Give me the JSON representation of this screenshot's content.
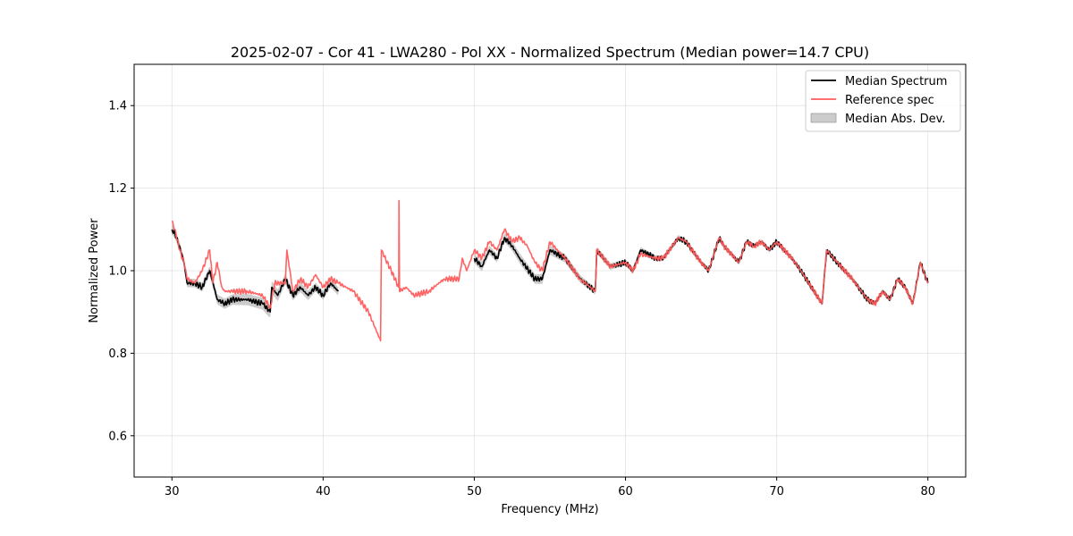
{
  "chart_data": {
    "type": "line",
    "title": "2025-02-07 - Cor 41 - LWA280 - Pol XX - Normalized Spectrum (Median power=14.7 CPU)",
    "xlabel": "Frequency (MHz)",
    "ylabel": "Normalized Power",
    "xlim": [
      27.5,
      82.5
    ],
    "ylim": [
      0.5,
      1.5
    ],
    "xticks": [
      30,
      40,
      50,
      60,
      70,
      80
    ],
    "yticks": [
      0.6,
      0.8,
      1.0,
      1.2,
      1.4
    ],
    "xtick_labels": [
      "30",
      "40",
      "50",
      "60",
      "70",
      "80"
    ],
    "ytick_labels": [
      "0.6",
      "0.8",
      "1.0",
      "1.2",
      "1.4"
    ],
    "grid": true,
    "legend_position": "top-right",
    "legend": [
      "Median Spectrum",
      "Reference spec",
      "Median Abs. Dev."
    ],
    "colors": {
      "median": "#000000",
      "reference": "#ff5c5c",
      "mad_fill": "#999999"
    },
    "series": [
      {
        "name": "Median Spectrum",
        "x": [
          30.0,
          30.2,
          30.5,
          30.8,
          31.0,
          31.5,
          32.0,
          32.5,
          33.0,
          33.5,
          34.0,
          35.0,
          36.0,
          36.5,
          36.6,
          37.0,
          37.5,
          38.0,
          38.5,
          39.0,
          39.5,
          40.0,
          40.5,
          41.0,
          null,
          50.0,
          50.5,
          51.0,
          51.5,
          52.0,
          52.5,
          53.0,
          54.0,
          54.5,
          55.0,
          56.0,
          57.0,
          58.0,
          58.1,
          59.0,
          60.0,
          60.5,
          61.0,
          62.0,
          62.5,
          63.5,
          64.0,
          65.0,
          65.5,
          66.2,
          66.5,
          67.5,
          68.0,
          68.5,
          69.0,
          69.5,
          70.0,
          71.0,
          71.6,
          73.0,
          73.3,
          74.0,
          75.0,
          76.0,
          76.5,
          77.0,
          77.5,
          78.0,
          78.5,
          79.0,
          79.5,
          80.0
        ],
        "y": [
          1.1,
          1.09,
          1.06,
          1.02,
          0.97,
          0.97,
          0.96,
          1.0,
          0.93,
          0.92,
          0.93,
          0.93,
          0.92,
          0.9,
          0.96,
          0.94,
          0.98,
          0.94,
          0.96,
          0.94,
          0.96,
          0.94,
          0.97,
          0.95,
          null,
          1.03,
          1.01,
          1.05,
          1.03,
          1.08,
          1.06,
          1.03,
          0.98,
          0.98,
          1.05,
          1.03,
          0.98,
          0.95,
          1.05,
          1.01,
          1.02,
          1.0,
          1.05,
          1.03,
          1.03,
          1.08,
          1.07,
          1.02,
          1.0,
          1.08,
          1.06,
          1.02,
          1.07,
          1.06,
          1.07,
          1.05,
          1.07,
          1.03,
          1.0,
          0.92,
          1.05,
          1.02,
          0.98,
          0.93,
          0.92,
          0.95,
          0.93,
          0.98,
          0.96,
          0.92,
          1.02,
          0.97
        ]
      },
      {
        "name": "Reference spec",
        "x": [
          30.0,
          30.2,
          30.5,
          30.8,
          31.0,
          31.5,
          32.0,
          32.5,
          32.7,
          33.0,
          33.3,
          33.5,
          34.0,
          35.0,
          36.0,
          36.5,
          36.8,
          37.5,
          37.6,
          38.0,
          38.5,
          39.0,
          39.5,
          40.0,
          40.5,
          41.0,
          41.5,
          42.0,
          43.0,
          43.8,
          43.85,
          44.5,
          45.0,
          45.02,
          45.05,
          45.5,
          46.0,
          47.0,
          48.0,
          49.0,
          49.2,
          49.5,
          50.0,
          50.5,
          51.0,
          51.5,
          52.0,
          52.5,
          53.0,
          53.5,
          54.0,
          54.5,
          55.0,
          55.5,
          56.0,
          57.0,
          58.0,
          58.1,
          59.0,
          60.0,
          60.5,
          61.0,
          62.0,
          62.5,
          63.5,
          64.0,
          65.0,
          65.5,
          66.2,
          66.5,
          67.5,
          68.0,
          68.5,
          69.0,
          69.5,
          70.0,
          71.0,
          71.6,
          73.0,
          73.3,
          74.0,
          75.0,
          76.0,
          76.5,
          77.0,
          77.5,
          78.0,
          78.5,
          79.0,
          79.5,
          80.0
        ],
        "y": [
          1.12,
          1.1,
          1.05,
          1.02,
          0.98,
          0.97,
          1.0,
          1.05,
          0.97,
          1.02,
          0.96,
          0.95,
          0.95,
          0.95,
          0.94,
          0.91,
          0.97,
          0.97,
          1.05,
          0.95,
          0.98,
          0.96,
          0.99,
          0.96,
          0.98,
          0.97,
          0.96,
          0.95,
          0.9,
          0.83,
          1.05,
          1.0,
          0.96,
          1.17,
          0.95,
          0.96,
          0.94,
          0.95,
          0.98,
          0.98,
          1.03,
          1.0,
          1.05,
          1.03,
          1.07,
          1.05,
          1.1,
          1.07,
          1.08,
          1.06,
          1.02,
          1.0,
          1.07,
          1.05,
          1.03,
          0.98,
          0.95,
          1.05,
          1.01,
          1.02,
          1.0,
          1.04,
          1.03,
          1.03,
          1.08,
          1.07,
          1.02,
          1.0,
          1.08,
          1.06,
          1.02,
          1.07,
          1.06,
          1.07,
          1.05,
          1.07,
          1.03,
          1.0,
          0.92,
          1.05,
          1.02,
          0.98,
          0.93,
          0.92,
          0.95,
          0.93,
          0.98,
          0.96,
          0.92,
          1.02,
          0.97
        ]
      }
    ],
    "mad_band": {
      "x": [
        30.0,
        31.0,
        33.0,
        36.5,
        38.0,
        41.0,
        null,
        50.0,
        51.5,
        53.0,
        54.5,
        58.0,
        66.0,
        73.0,
        80.0
      ],
      "half_width": [
        0.012,
        0.01,
        0.012,
        0.015,
        0.012,
        0.01,
        null,
        0.012,
        0.01,
        0.012,
        0.012,
        0.008,
        0.006,
        0.006,
        0.006
      ]
    }
  }
}
